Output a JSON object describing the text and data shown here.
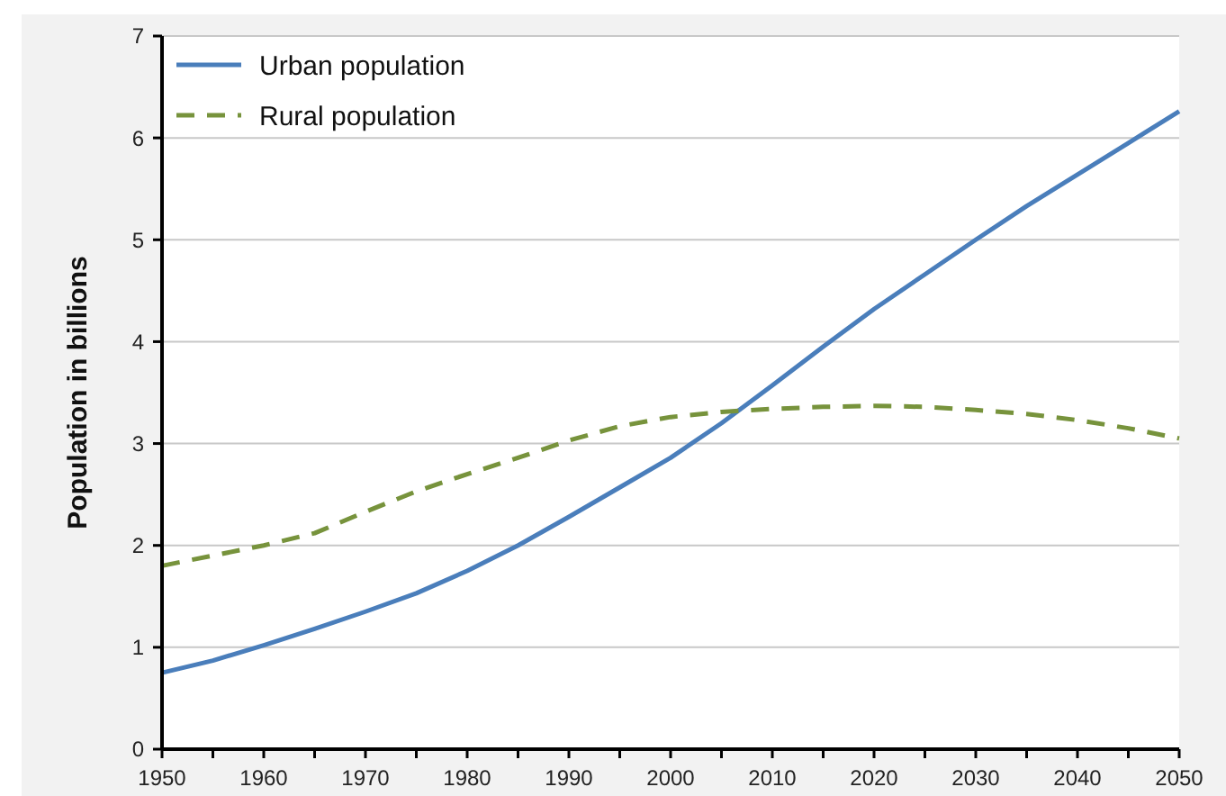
{
  "chart_data": {
    "type": "line",
    "ylabel": "Population in billions",
    "x": [
      1950,
      1955,
      1960,
      1965,
      1970,
      1975,
      1980,
      1985,
      1990,
      1995,
      2000,
      2005,
      2010,
      2015,
      2020,
      2025,
      2030,
      2035,
      2040,
      2045,
      2050
    ],
    "series": [
      {
        "name": "Urban population",
        "color": "#4a7ebb",
        "line_style": "solid",
        "values": [
          0.75,
          0.87,
          1.02,
          1.18,
          1.35,
          1.53,
          1.75,
          2.0,
          2.28,
          2.57,
          2.86,
          3.2,
          3.57,
          3.95,
          4.32,
          4.66,
          5.0,
          5.33,
          5.64,
          5.95,
          6.26
        ]
      },
      {
        "name": "Rural population",
        "color": "#77933c",
        "line_style": "dashed",
        "values": [
          1.8,
          1.9,
          2.0,
          2.12,
          2.33,
          2.53,
          2.7,
          2.86,
          3.03,
          3.17,
          3.26,
          3.31,
          3.34,
          3.36,
          3.37,
          3.36,
          3.33,
          3.29,
          3.23,
          3.15,
          3.05
        ]
      }
    ],
    "xlim": [
      1950,
      2050
    ],
    "xticks": [
      1950,
      1960,
      1970,
      1980,
      1990,
      2000,
      2010,
      2020,
      2030,
      2040,
      2050
    ],
    "ylim": [
      0,
      7
    ],
    "yticks": [
      0,
      1,
      2,
      3,
      4,
      5,
      6,
      7
    ],
    "grid": "y",
    "legend": "top left",
    "marker": "none"
  }
}
